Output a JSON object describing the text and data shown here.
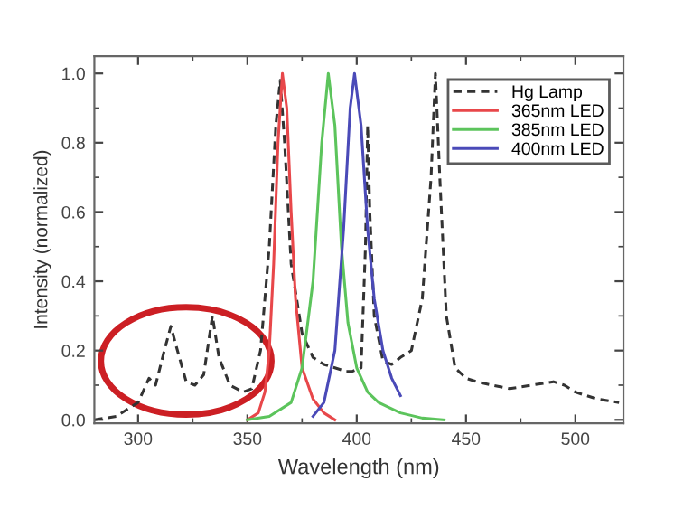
{
  "chart_data": {
    "type": "line",
    "xlabel": "Wavelength (nm)",
    "ylabel": "Intensity (normalized)",
    "xlim": [
      280,
      522
    ],
    "xticks": [
      300,
      350,
      400,
      450,
      500
    ],
    "ylim": [
      -0.01,
      1.05
    ],
    "yticks": [
      {
        "value": 0,
        "label": "0.0"
      },
      0.2,
      0.4,
      0.6,
      0.8,
      {
        "value": 1,
        "label": "1.0"
      }
    ],
    "legend": "top right",
    "grid": false,
    "marker": "none",
    "series": [
      {
        "name": "Hg Lamp",
        "color": "#333333",
        "line_style": "dashed",
        "x": [
          280,
          290,
          300,
          305,
          308,
          312,
          315,
          318,
          322,
          326,
          330,
          334,
          337,
          342,
          348,
          352,
          356,
          360,
          363,
          365,
          367,
          370,
          375,
          380,
          385,
          390,
          395,
          398,
          402,
          404,
          405,
          406,
          408,
          412,
          416,
          420,
          425,
          430,
          434,
          436,
          438,
          441,
          445,
          450,
          455,
          462,
          470,
          480,
          490,
          495,
          500,
          510,
          520
        ],
        "values": [
          0.0,
          0.01,
          0.05,
          0.12,
          0.1,
          0.2,
          0.27,
          0.2,
          0.11,
          0.1,
          0.13,
          0.3,
          0.18,
          0.1,
          0.08,
          0.09,
          0.2,
          0.5,
          0.85,
          0.98,
          0.8,
          0.45,
          0.25,
          0.18,
          0.16,
          0.15,
          0.14,
          0.14,
          0.15,
          0.5,
          0.85,
          0.6,
          0.3,
          0.17,
          0.16,
          0.18,
          0.2,
          0.35,
          0.7,
          1.0,
          0.7,
          0.3,
          0.15,
          0.12,
          0.11,
          0.1,
          0.09,
          0.1,
          0.11,
          0.1,
          0.08,
          0.06,
          0.05
        ]
      },
      {
        "name": "365nm LED",
        "color": "#e8474a",
        "line_style": "solid",
        "x": [
          350,
          355,
          358,
          360,
          362,
          364,
          366,
          368,
          370,
          372,
          375,
          380,
          385,
          390
        ],
        "values": [
          0.0,
          0.02,
          0.08,
          0.2,
          0.45,
          0.8,
          1.0,
          0.9,
          0.6,
          0.35,
          0.15,
          0.06,
          0.02,
          0.0
        ]
      },
      {
        "name": "385nm LED",
        "color": "#5cc45c",
        "line_style": "solid",
        "x": [
          350,
          360,
          370,
          375,
          380,
          384,
          387,
          390,
          393,
          396,
          400,
          405,
          410,
          420,
          430,
          440
        ],
        "values": [
          0.0,
          0.01,
          0.05,
          0.15,
          0.4,
          0.8,
          1.0,
          0.85,
          0.5,
          0.28,
          0.15,
          0.08,
          0.05,
          0.02,
          0.005,
          0.0
        ]
      },
      {
        "name": "400nm LED",
        "color": "#4a4ab8",
        "line_style": "solid",
        "x": [
          380,
          385,
          390,
          394,
          397,
          399,
          402,
          405,
          408,
          412,
          416,
          420
        ],
        "values": [
          0.01,
          0.05,
          0.2,
          0.55,
          0.9,
          1.0,
          0.85,
          0.55,
          0.35,
          0.2,
          0.12,
          0.07
        ]
      }
    ]
  }
}
